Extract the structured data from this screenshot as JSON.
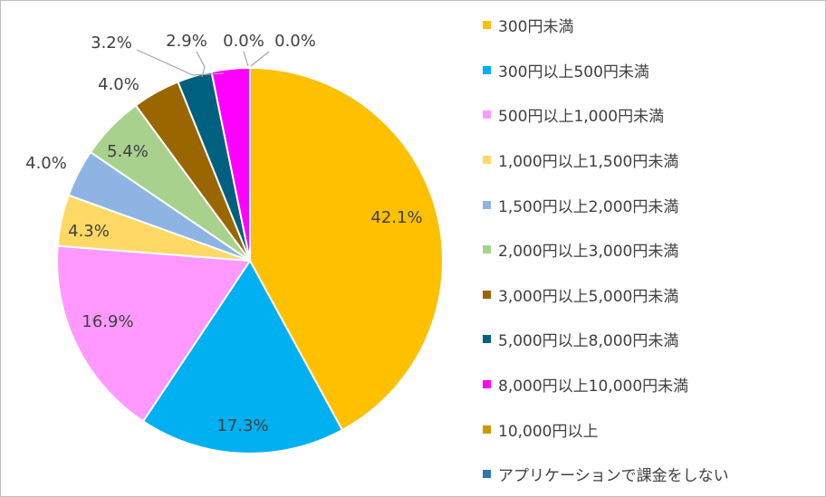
{
  "chart_data": {
    "type": "pie",
    "title": "",
    "legend_position": "right",
    "slices": [
      {
        "label": "300円未満",
        "value": 42.1,
        "display": "42.1%",
        "color": "#FFC000"
      },
      {
        "label": "300円以上500円未満",
        "value": 17.3,
        "display": "17.3%",
        "color": "#00B0F0"
      },
      {
        "label": "500円以上1,000円未満",
        "value": 16.9,
        "display": "16.9%",
        "color": "#FF99FF"
      },
      {
        "label": "1,000円以上1,500円未満",
        "value": 4.3,
        "display": "4.3%",
        "color": "#FFD966"
      },
      {
        "label": "1,500円以上2,000円未満",
        "value": 4.0,
        "display": "4.0%",
        "color": "#8EB4E3"
      },
      {
        "label": "2,000円以上3,000円未満",
        "value": 5.4,
        "display": "5.4%",
        "color": "#A9D18E"
      },
      {
        "label": "3,000円以上5,000円未満",
        "value": 4.0,
        "display": "4.0%",
        "color": "#996600"
      },
      {
        "label": "5,000円以上8,000円未満",
        "value": 2.9,
        "display": "2.9%",
        "color": "#006080"
      },
      {
        "label": "8,000円以上10,000円未満",
        "value": 3.2,
        "display": "3.2%",
        "color": "#FF00FF"
      },
      {
        "label": "10,000円以上",
        "value": 0.0,
        "display": "0.0%",
        "color": "#CC9900"
      },
      {
        "label": "アプリケーションで課金をしない",
        "value": 0.0,
        "display": "0.0%",
        "color": "#2E75B6"
      }
    ]
  }
}
